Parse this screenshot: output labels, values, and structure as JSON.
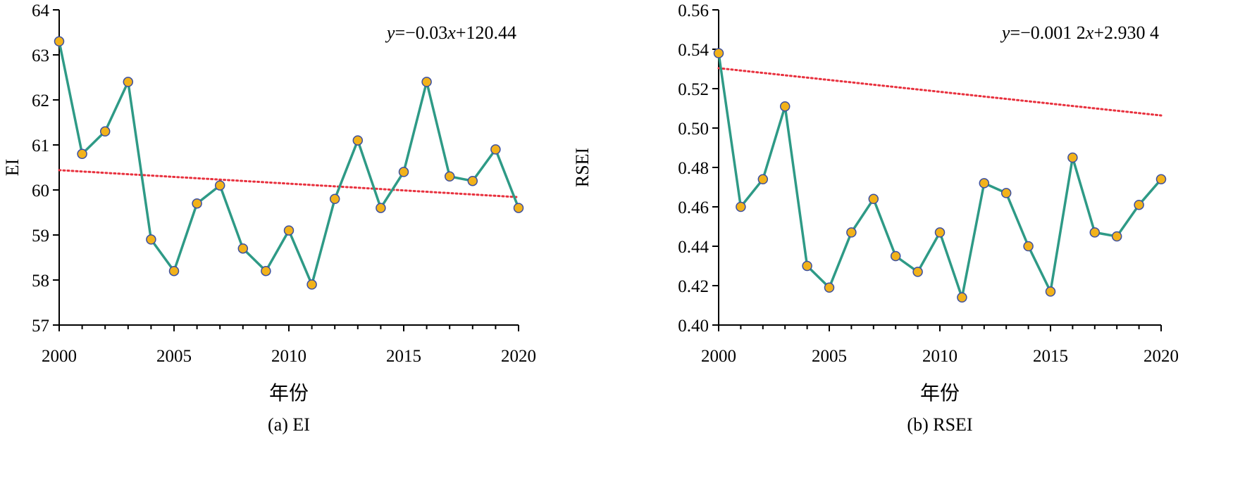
{
  "colors": {
    "series_line": "#2e9a86",
    "marker_fill": "#f2b21a",
    "marker_stroke": "#3b4fa0",
    "trend_line": "#e8313e",
    "axis": "#000000"
  },
  "chart_data": [
    {
      "type": "line",
      "caption": "(a) EI",
      "xlabel": "年份",
      "ylabel": "EI",
      "xlim": [
        2000,
        2020
      ],
      "ylim": [
        57,
        64
      ],
      "xticks": [
        "2000",
        "2005",
        "2010",
        "2015",
        "2020"
      ],
      "yticks": [
        "57",
        "58",
        "59",
        "60",
        "61",
        "62",
        "63",
        "64"
      ],
      "equation": {
        "y": "y",
        "rest": "=−0.03",
        "x": "x",
        "tail": "+120.44"
      },
      "trend": {
        "slope": -0.03,
        "intercept": 120.44
      },
      "series": [
        {
          "name": "EI",
          "x": [
            2000,
            2001,
            2002,
            2003,
            2004,
            2005,
            2006,
            2007,
            2008,
            2009,
            2010,
            2011,
            2012,
            2013,
            2014,
            2015,
            2016,
            2017,
            2018,
            2019,
            2020
          ],
          "values": [
            63.3,
            60.8,
            61.3,
            62.4,
            58.9,
            58.2,
            59.7,
            60.1,
            58.7,
            58.2,
            59.1,
            57.9,
            59.8,
            61.1,
            59.6,
            60.4,
            62.4,
            60.3,
            60.2,
            60.9,
            59.6
          ]
        }
      ]
    },
    {
      "type": "line",
      "caption": "(b) RSEI",
      "xlabel": "年份",
      "ylabel": "RSEI",
      "xlim": [
        2000,
        2020
      ],
      "ylim": [
        0.4,
        0.56
      ],
      "xticks": [
        "2000",
        "2005",
        "2010",
        "2015",
        "2020"
      ],
      "yticks": [
        "0.40",
        "0.42",
        "0.44",
        "0.46",
        "0.48",
        "0.50",
        "0.52",
        "0.54",
        "0.56"
      ],
      "equation": {
        "y": "y",
        "rest": "=−0.001 2",
        "x": "x",
        "tail": "+2.930 4"
      },
      "trend": {
        "slope": -0.0012,
        "intercept": 2.9304
      },
      "series": [
        {
          "name": "RSEI",
          "x": [
            2000,
            2001,
            2002,
            2003,
            2004,
            2005,
            2006,
            2007,
            2008,
            2009,
            2010,
            2011,
            2012,
            2013,
            2014,
            2015,
            2016,
            2017,
            2018,
            2019,
            2020
          ],
          "values": [
            0.538,
            0.46,
            0.474,
            0.511,
            0.43,
            0.419,
            0.447,
            0.464,
            0.435,
            0.427,
            0.447,
            0.414,
            0.472,
            0.467,
            0.44,
            0.417,
            0.485,
            0.447,
            0.445,
            0.461,
            0.474
          ]
        }
      ]
    }
  ]
}
